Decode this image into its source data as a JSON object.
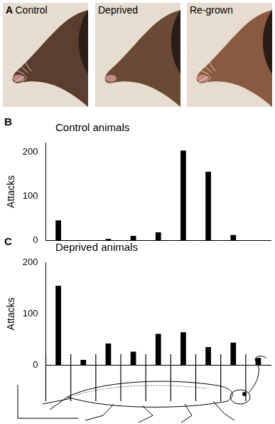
{
  "panel_a": {
    "label": "A",
    "photos": [
      "Control",
      "Deprived",
      "Re-grown"
    ]
  },
  "chart_data": [
    {
      "label": "B",
      "type": "bar",
      "title": "Control animals",
      "y_label": "Attacks",
      "categories": [
        null,
        null,
        null,
        null,
        null,
        null,
        null,
        null,
        null
      ],
      "values": [
        45,
        0,
        3,
        10,
        18,
        203,
        155,
        12,
        0
      ],
      "color": "#000000",
      "ylim": [
        0,
        220
      ],
      "yticks": [
        0,
        100,
        200
      ],
      "grid": false,
      "tick_labels": "y"
    },
    {
      "label": "C",
      "type": "bar",
      "title": "Deprived animals",
      "y_label": "Attacks",
      "categories": [
        null,
        null,
        null,
        null,
        null,
        null,
        null,
        null,
        null
      ],
      "values": [
        155,
        10,
        42,
        26,
        61,
        64,
        35,
        44,
        14
      ],
      "color": "#000000",
      "ylim": [
        0,
        200
      ],
      "yticks": [
        0,
        100,
        200
      ],
      "grid": false,
      "tick_labels": "y"
    }
  ]
}
